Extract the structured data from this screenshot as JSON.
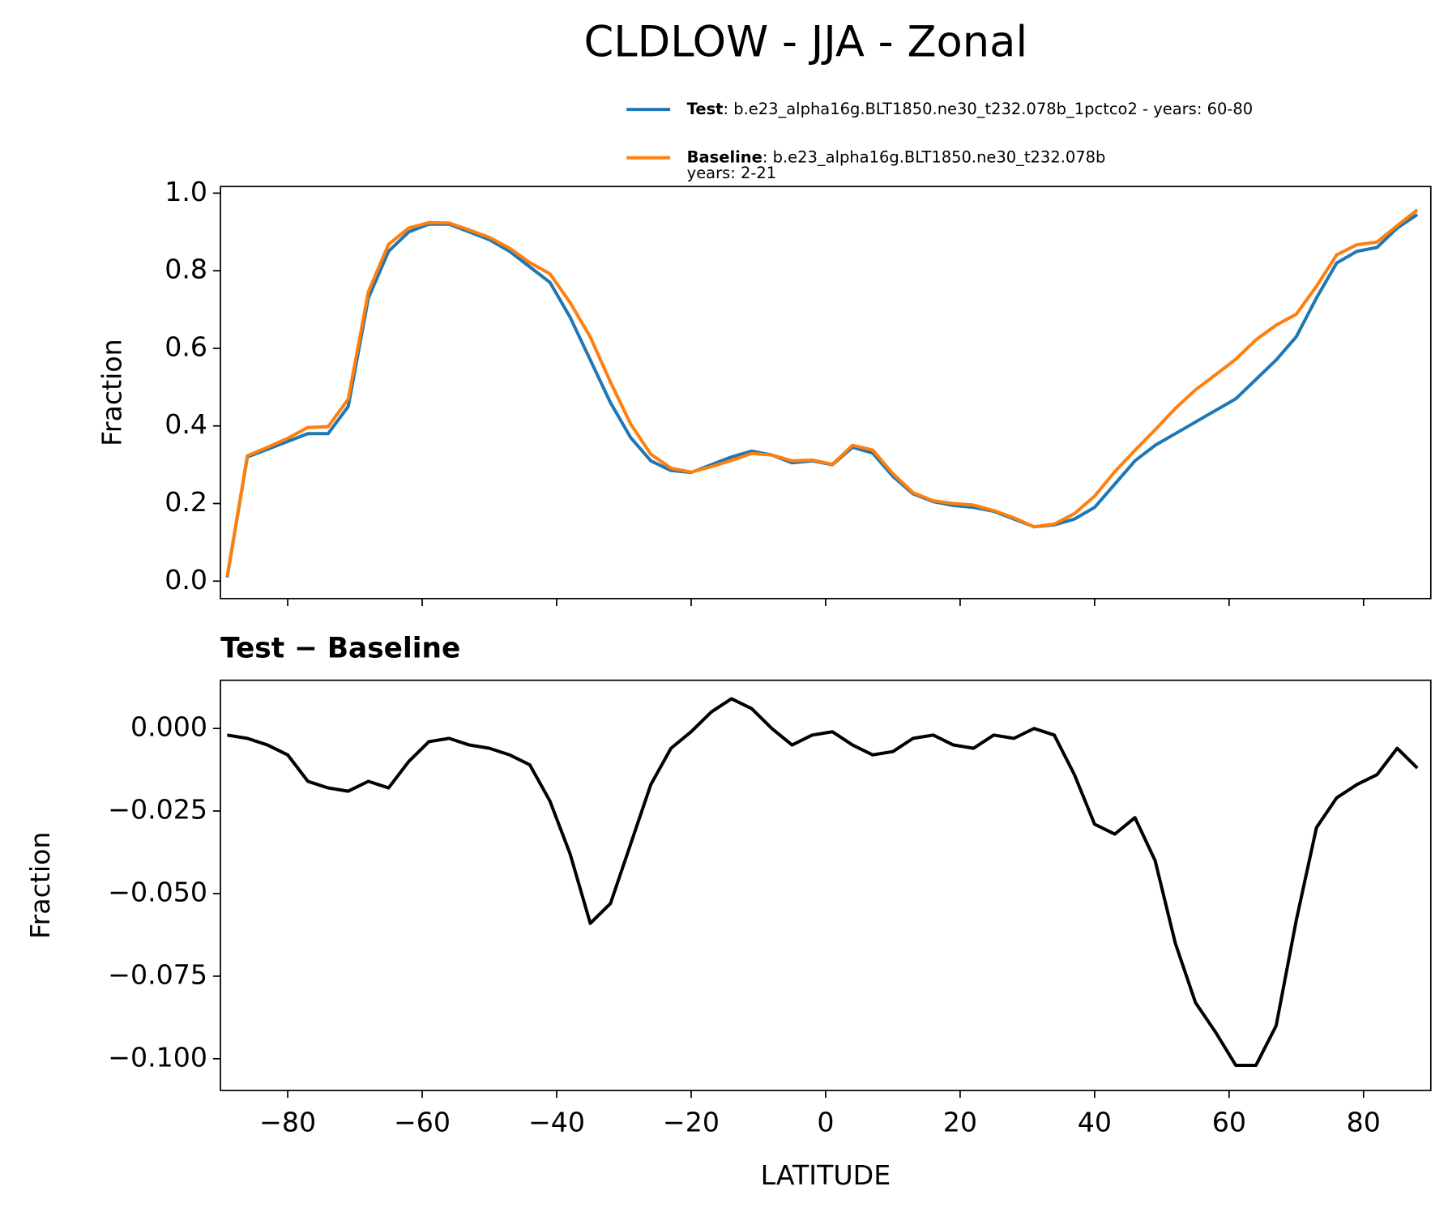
{
  "title": "CLDLOW - JJA - Zonal",
  "chart_data": [
    {
      "type": "line",
      "ylabel": "Fraction",
      "legend": "top",
      "xtick_labels": false,
      "x": [
        -89,
        -86,
        -83,
        -80,
        -77,
        -74,
        -71,
        -68,
        -65,
        -62,
        -59,
        -56,
        -53,
        -50,
        -47,
        -44,
        -41,
        -38,
        -35,
        -32,
        -29,
        -26,
        -23,
        -20,
        -17,
        -14,
        -11,
        -8,
        -5,
        -2,
        1,
        4,
        7,
        10,
        13,
        16,
        19,
        22,
        25,
        28,
        31,
        34,
        37,
        40,
        43,
        46,
        49,
        52,
        55,
        58,
        61,
        64,
        67,
        70,
        73,
        76,
        79,
        82,
        85,
        88
      ],
      "series": [
        {
          "name": "Test",
          "description": [
            ": b.e23_alpha16g.BLT1850.ne30_t232.078b_1pctco2 - years: 60-80"
          ],
          "color": "#1f77b4",
          "values": [
            0.01,
            0.32,
            0.34,
            0.36,
            0.38,
            0.38,
            0.45,
            0.73,
            0.85,
            0.9,
            0.92,
            0.92,
            0.9,
            0.88,
            0.85,
            0.81,
            0.77,
            0.68,
            0.57,
            0.46,
            0.37,
            0.31,
            0.285,
            0.28,
            0.3,
            0.32,
            0.335,
            0.325,
            0.305,
            0.31,
            0.3,
            0.345,
            0.33,
            0.27,
            0.225,
            0.205,
            0.195,
            0.19,
            0.18,
            0.16,
            0.14,
            0.145,
            0.16,
            0.19,
            0.25,
            0.31,
            0.35,
            0.38,
            0.41,
            0.44,
            0.47,
            0.52,
            0.57,
            0.63,
            0.73,
            0.82,
            0.85,
            0.86,
            0.91,
            0.945
          ]
        },
        {
          "name": "Baseline",
          "description": [
            ": b.e23_alpha16g.BLT1850.ne30_t232.078b",
            "years: 2-21"
          ],
          "color": "#ff7f0e",
          "values": [
            0.012,
            0.323,
            0.345,
            0.368,
            0.396,
            0.398,
            0.469,
            0.746,
            0.868,
            0.91,
            0.924,
            0.923,
            0.905,
            0.886,
            0.858,
            0.821,
            0.792,
            0.718,
            0.629,
            0.513,
            0.405,
            0.327,
            0.291,
            0.281,
            0.295,
            0.311,
            0.329,
            0.325,
            0.31,
            0.312,
            0.301,
            0.35,
            0.338,
            0.277,
            0.228,
            0.207,
            0.2,
            0.196,
            0.182,
            0.163,
            0.14,
            0.147,
            0.174,
            0.219,
            0.282,
            0.337,
            0.39,
            0.445,
            0.493,
            0.532,
            0.572,
            0.622,
            0.66,
            0.688,
            0.76,
            0.841,
            0.867,
            0.874,
            0.916,
            0.957
          ]
        }
      ],
      "xlim": [
        -90,
        90
      ],
      "ylim": [
        -0.045,
        1.017
      ],
      "xticks": [
        -80,
        -60,
        -40,
        -20,
        0,
        20,
        40,
        60,
        80
      ],
      "yticks": [
        {
          "value": 0,
          "label": "0.0"
        },
        0.2,
        0.4,
        0.6,
        0.8,
        {
          "value": 1,
          "label": "1.0"
        }
      ]
    },
    {
      "type": "line",
      "title": "Test − Baseline",
      "xlabel": "LATITUDE",
      "ylabel": "Fraction",
      "x": [
        -89,
        -86,
        -83,
        -80,
        -77,
        -74,
        -71,
        -68,
        -65,
        -62,
        -59,
        -56,
        -53,
        -50,
        -47,
        -44,
        -41,
        -38,
        -35,
        -32,
        -29,
        -26,
        -23,
        -20,
        -17,
        -14,
        -11,
        -8,
        -5,
        -2,
        1,
        4,
        7,
        10,
        13,
        16,
        19,
        22,
        25,
        28,
        31,
        34,
        37,
        40,
        43,
        46,
        49,
        52,
        55,
        58,
        61,
        64,
        67,
        70,
        73,
        76,
        79,
        82,
        85,
        88
      ],
      "series": [
        {
          "color": "#000000",
          "values": [
            -0.002,
            -0.003,
            -0.005,
            -0.008,
            -0.016,
            -0.018,
            -0.019,
            -0.016,
            -0.018,
            -0.01,
            -0.004,
            -0.003,
            -0.005,
            -0.006,
            -0.008,
            -0.011,
            -0.022,
            -0.038,
            -0.059,
            -0.053,
            -0.035,
            -0.017,
            -0.006,
            -0.001,
            0.005,
            0.009,
            0.006,
            0,
            -0.005,
            -0.002,
            -0.001,
            -0.005,
            -0.008,
            -0.007,
            -0.003,
            -0.002,
            -0.005,
            -0.006,
            -0.002,
            -0.003,
            0,
            -0.002,
            -0.014,
            -0.029,
            -0.032,
            -0.027,
            -0.04,
            -0.065,
            -0.083,
            -0.092,
            -0.102,
            -0.102,
            -0.09,
            -0.058,
            -0.03,
            -0.021,
            -0.017,
            -0.014,
            -0.006,
            -0.012
          ]
        }
      ],
      "xlim": [
        -90,
        90
      ],
      "ylim": [
        -0.1096,
        0.0146
      ],
      "xticks": [
        {
          "value": -80,
          "label": "−80"
        },
        {
          "value": -60,
          "label": "−60"
        },
        {
          "value": -40,
          "label": "−40"
        },
        {
          "value": -20,
          "label": "−20"
        },
        0,
        20,
        40,
        60,
        80
      ],
      "yticks": [
        {
          "value": 0,
          "label": "0.000"
        },
        {
          "value": -0.025,
          "label": "−0.025"
        },
        {
          "value": -0.05,
          "label": "−0.050"
        },
        {
          "value": -0.075,
          "label": "−0.075"
        },
        {
          "value": -0.1,
          "label": "−0.100"
        }
      ]
    }
  ]
}
